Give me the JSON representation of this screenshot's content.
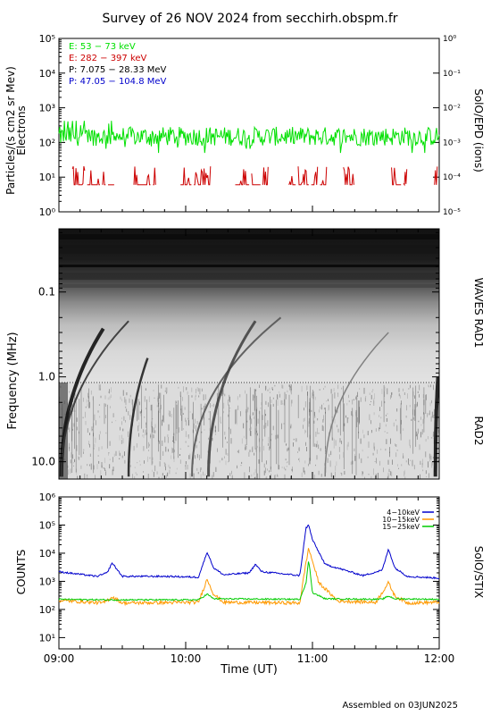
{
  "title": "Survey of 26 NOV 2024 from secchirh.obspm.fr",
  "footer": "Assembled on 03JUN2025",
  "colors": {
    "electron_low": "#00e000",
    "electron_high": "#cc0000",
    "proton_low": "#000000",
    "proton_high": "#0000cc",
    "stix_4_10": "#0000cc",
    "stix_10_15": "#ff9900",
    "stix_15_25": "#00cc00"
  },
  "chart_data": [
    {
      "type": "line",
      "title": "",
      "ylabel": "Particles/(s cm2 sr Mev)",
      "ylabel2": "Electrons",
      "ylabel_right": "SolO/EPD (ions)",
      "yscale": "log",
      "ylim": [
        1,
        100000
      ],
      "yticks": [
        "10⁰",
        "10¹",
        "10²",
        "10³",
        "10⁴",
        "10⁵"
      ],
      "y2lim": [
        1e-05,
        1
      ],
      "y2ticks": [
        "10⁻⁵",
        "10⁻⁴",
        "10⁻³",
        "10⁻²",
        "10⁻¹",
        "10⁰"
      ],
      "legend": [
        {
          "label": "E: 53 − 73 keV",
          "color": "#00e000"
        },
        {
          "label": "E: 282 − 397 keV",
          "color": "#cc0000"
        },
        {
          "label": "P: 7.075 − 28.33 MeV",
          "color": "#000000"
        },
        {
          "label": "P: 47.05 − 104.8 MeV",
          "color": "#0000cc"
        }
      ],
      "legend_position": "top-left",
      "series": [
        {
          "name": "E: 53 − 73 keV",
          "color": "#00e000",
          "typical": 150,
          "min": 50,
          "max": 420
        },
        {
          "name": "E: 282 − 397 keV",
          "color": "#cc0000",
          "typical": 6,
          "min": 4,
          "max": 20
        }
      ]
    },
    {
      "type": "heatmap",
      "ylabel": "Frequency (MHz)",
      "ylabel_right_top": "WAVES RAD1",
      "ylabel_right_bottom": "RAD2",
      "yscale": "log",
      "yaxis": "inverted",
      "yticks": [
        "0.1",
        "1.0",
        "10.0"
      ],
      "ylim": [
        0.018,
        16
      ],
      "rad1_rad2_boundary_MHz": 1.0,
      "colormap": "white-black (inverted grey)"
    },
    {
      "type": "line",
      "ylabel": "COUNTS",
      "ylabel_right": "SolO/STIX",
      "xlabel": "Time (UT)",
      "yscale": "log",
      "ylim": [
        10,
        1000000
      ],
      "yticks": [
        "10¹",
        "10²",
        "10³",
        "10⁴",
        "10⁵",
        "10⁶"
      ],
      "xlim_hours": [
        9.0,
        12.0
      ],
      "xticks": [
        "09:00",
        "10:00",
        "11:00",
        "12:00"
      ],
      "legend_position": "top-right",
      "series": [
        {
          "name": "4−10keV",
          "color": "#0000cc",
          "x": [
            9.0,
            9.3,
            9.38,
            9.42,
            9.5,
            9.85,
            10.1,
            10.17,
            10.22,
            10.3,
            10.5,
            10.55,
            10.6,
            10.9,
            10.95,
            10.97,
            11.0,
            11.1,
            11.4,
            11.55,
            11.6,
            11.65,
            11.75,
            12.0
          ],
          "values": [
            2200,
            1500,
            2000,
            4500,
            1500,
            1500,
            1400,
            11000,
            3000,
            1700,
            2000,
            4000,
            2200,
            1600,
            80000,
            100000,
            30000,
            4000,
            1600,
            2500,
            14000,
            3000,
            1500,
            1300
          ]
        },
        {
          "name": "10−15keV",
          "color": "#ff9900",
          "x": [
            9.0,
            9.35,
            9.42,
            9.5,
            10.1,
            10.17,
            10.22,
            10.3,
            10.9,
            10.95,
            10.97,
            11.05,
            11.2,
            11.5,
            11.6,
            11.65,
            11.75,
            12.0
          ],
          "values": [
            210,
            170,
            280,
            170,
            180,
            1200,
            350,
            180,
            170,
            5000,
            15000,
            900,
            200,
            180,
            900,
            300,
            170,
            180
          ]
        },
        {
          "name": "15−25keV",
          "color": "#00cc00",
          "x": [
            9.0,
            9.4,
            10.1,
            10.17,
            10.22,
            10.9,
            10.95,
            10.97,
            11.0,
            11.1,
            11.55,
            11.6,
            11.65,
            12.0
          ],
          "values": [
            230,
            220,
            220,
            350,
            240,
            230,
            900,
            6000,
            400,
            240,
            230,
            300,
            240,
            230
          ]
        }
      ]
    }
  ]
}
